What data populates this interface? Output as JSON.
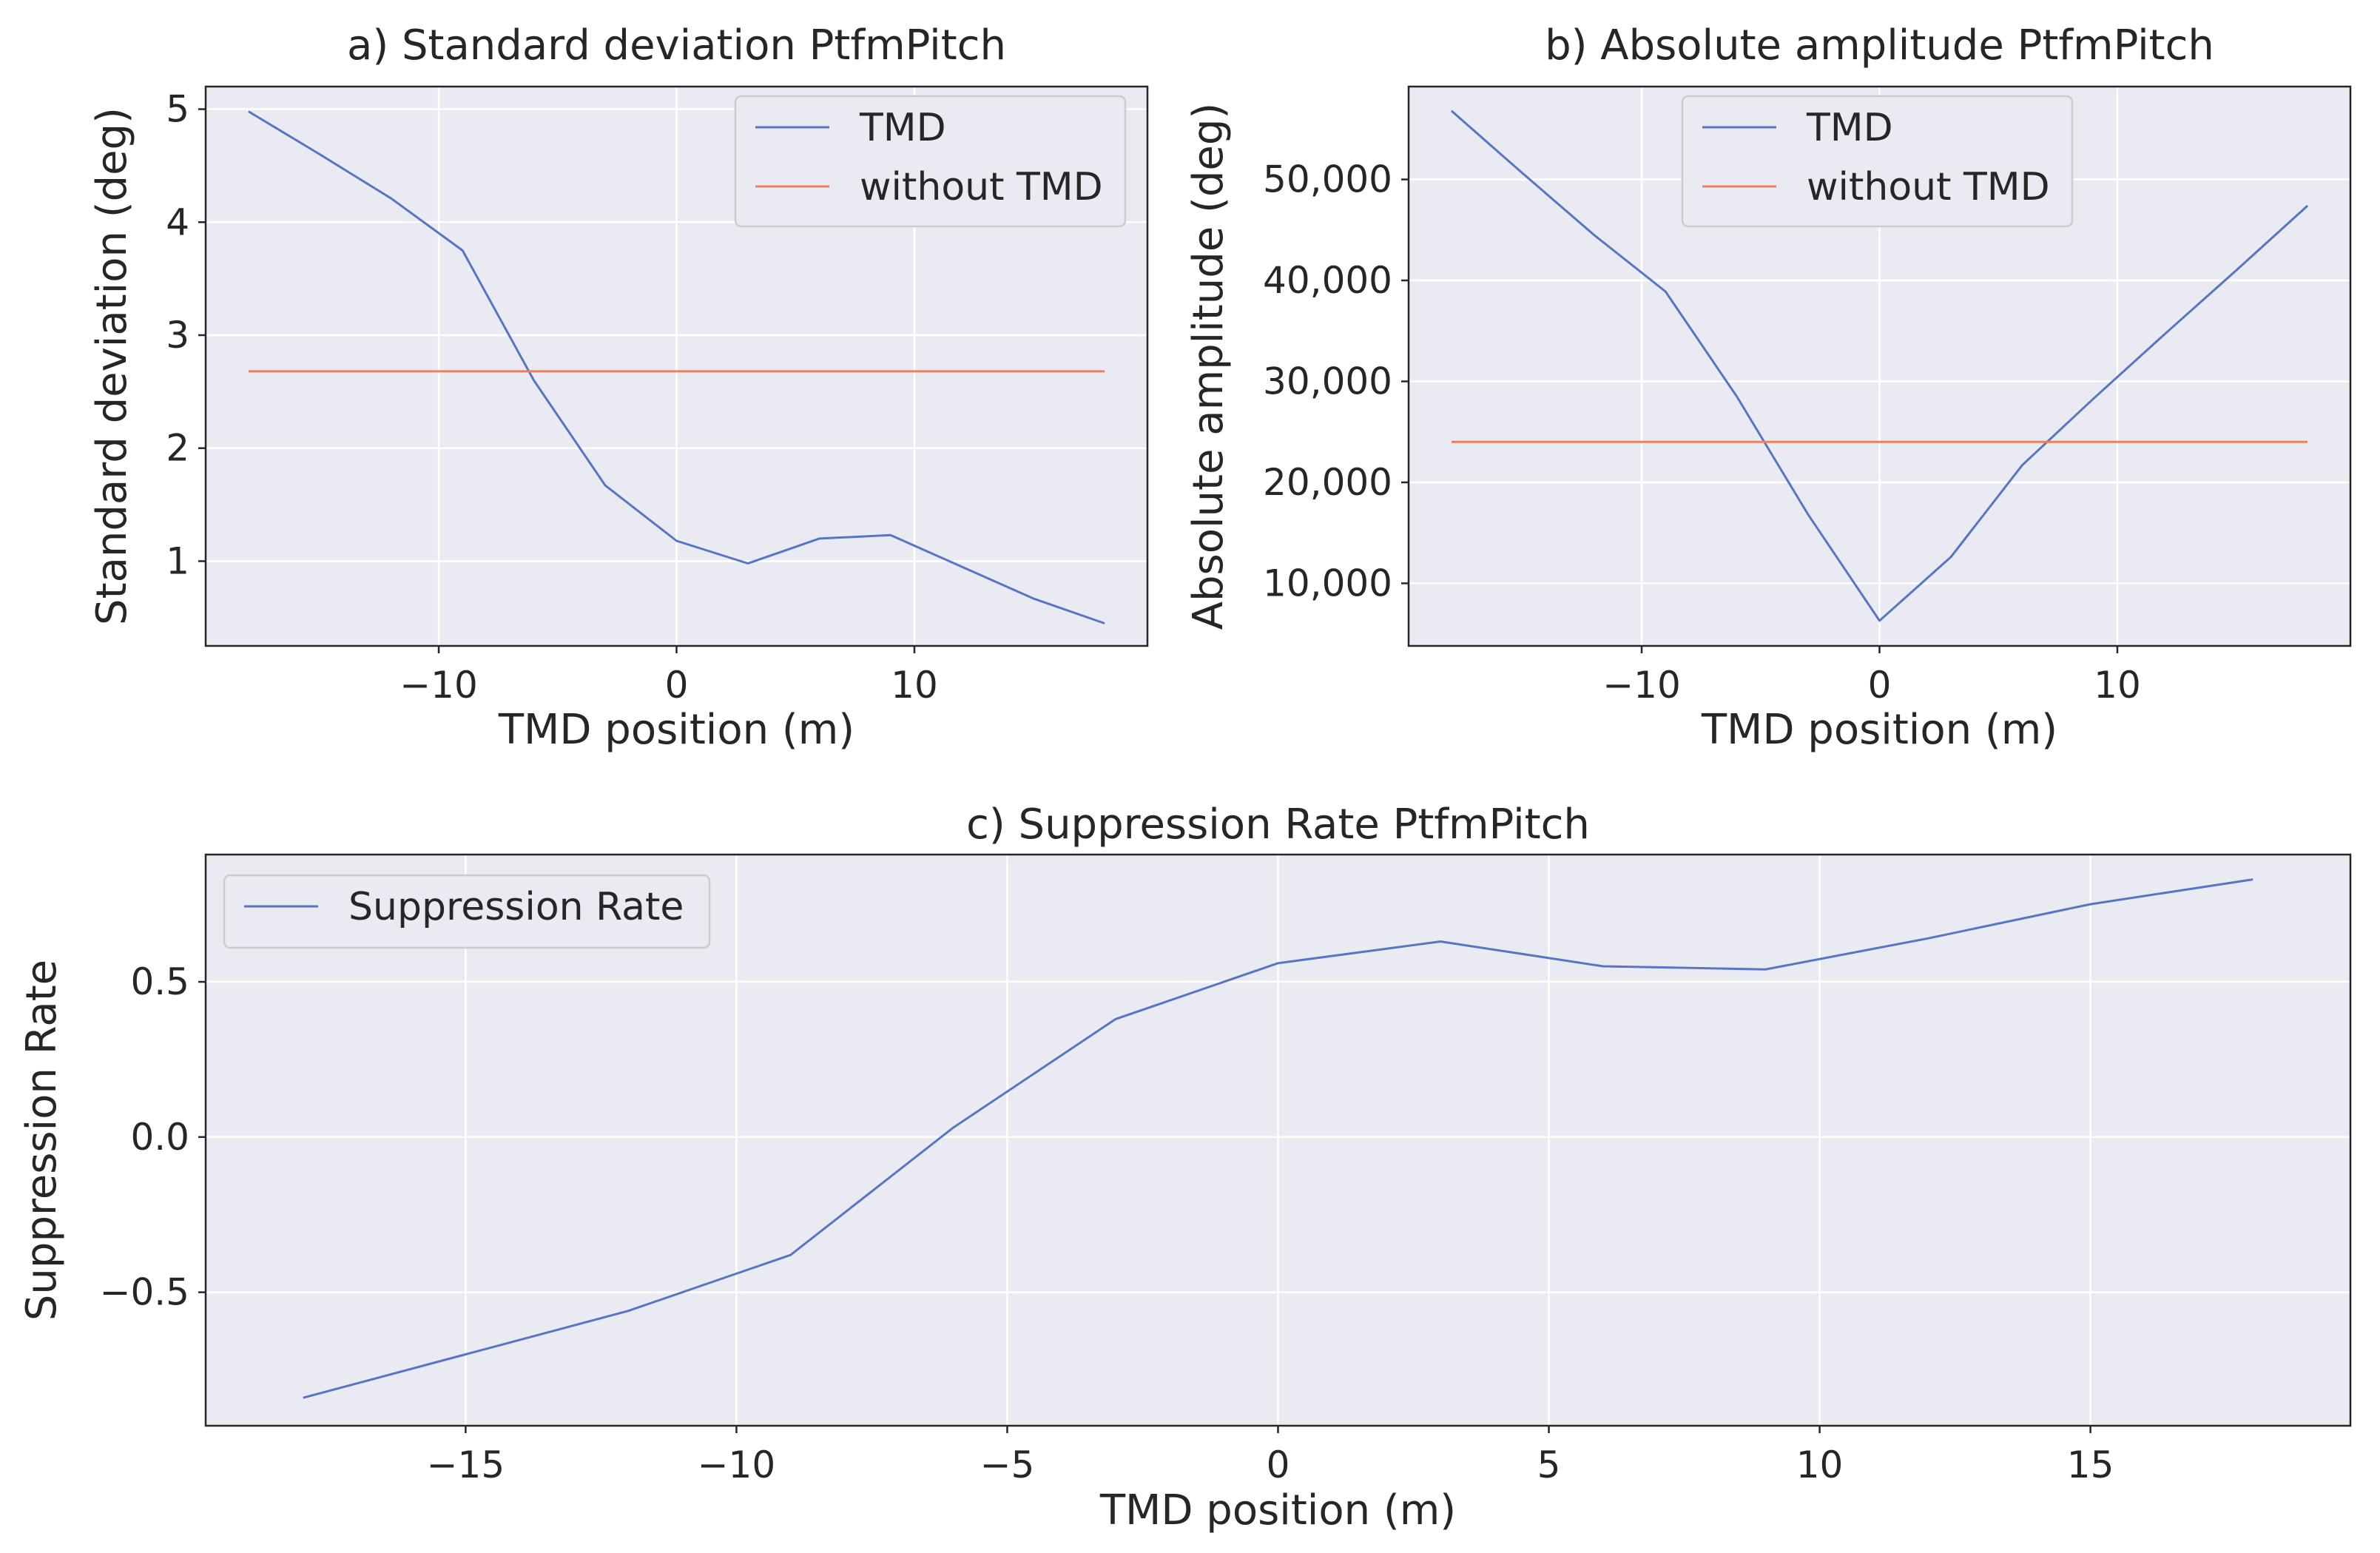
{
  "colors": {
    "tmd": "#5875c4",
    "without_tmd": "#e8815e",
    "suppression": "#5875c4"
  },
  "chart_data": [
    {
      "id": "a",
      "type": "line",
      "title": "a) Standard deviation PtfmPitch",
      "xlabel": "TMD position (m)",
      "ylabel": "Standard deviation (deg)",
      "xlim": [
        -19.8,
        19.8
      ],
      "ylim": [
        0.25,
        5.2
      ],
      "xticks": [
        -10,
        0,
        10
      ],
      "xtick_labels": [
        "−10",
        "0",
        "10"
      ],
      "yticks": [
        1,
        2,
        3,
        4,
        5
      ],
      "ytick_labels": [
        "1",
        "2",
        "3",
        "4",
        "5"
      ],
      "legend": {
        "position": "upper right",
        "entries": [
          "TMD",
          "without TMD"
        ]
      },
      "series": [
        {
          "name": "TMD",
          "color_key": "tmd",
          "x": [
            -18,
            -15,
            -12,
            -9,
            -6,
            -3,
            0,
            3,
            6,
            9,
            12,
            15,
            18
          ],
          "y": [
            4.98,
            4.6,
            4.21,
            3.75,
            2.6,
            1.67,
            1.18,
            0.98,
            1.2,
            1.23,
            0.95,
            0.67,
            0.45
          ]
        },
        {
          "name": "without TMD",
          "color_key": "without_tmd",
          "x": [
            -18,
            18
          ],
          "y": [
            2.68,
            2.68
          ]
        }
      ]
    },
    {
      "id": "b",
      "type": "line",
      "title": "b) Absolute amplitude PtfmPitch",
      "xlabel": "TMD position (m)",
      "ylabel": "Absolute amplitude (deg)",
      "xlim": [
        -19.8,
        19.8
      ],
      "ylim": [
        3800,
        59200
      ],
      "xticks": [
        -10,
        0,
        10
      ],
      "xtick_labels": [
        "−10",
        "0",
        "10"
      ],
      "yticks": [
        10000,
        20000,
        30000,
        40000,
        50000
      ],
      "ytick_labels": [
        "10,000",
        "20,000",
        "30,000",
        "40,000",
        "50,000"
      ],
      "legend": {
        "position": "upper center",
        "entries": [
          "TMD",
          "without TMD"
        ]
      },
      "series": [
        {
          "name": "TMD",
          "color_key": "tmd",
          "x": [
            -18,
            -15,
            -12,
            -9,
            -6,
            -3,
            0,
            3,
            6,
            9,
            12,
            15,
            18
          ],
          "y": [
            56800,
            50600,
            44500,
            38900,
            28500,
            16800,
            6300,
            12600,
            21700,
            28300,
            34700,
            41000,
            47400
          ]
        },
        {
          "name": "without TMD",
          "color_key": "without_tmd",
          "x": [
            -18,
            18
          ],
          "y": [
            24000,
            24000
          ]
        }
      ]
    },
    {
      "id": "c",
      "type": "line",
      "title": "c) Suppression Rate PtfmPitch",
      "xlabel": "TMD position (m)",
      "ylabel": "Suppression Rate",
      "xlim": [
        -19.8,
        19.8
      ],
      "ylim": [
        -0.93,
        0.91
      ],
      "xticks": [
        -15,
        -10,
        -5,
        0,
        5,
        10,
        15
      ],
      "xtick_labels": [
        "−15",
        "−10",
        "−5",
        "0",
        "5",
        "10",
        "15"
      ],
      "yticks": [
        -0.5,
        0,
        0.5
      ],
      "ytick_labels": [
        "−0.5",
        "0.0",
        "0.5"
      ],
      "legend": {
        "position": "upper left",
        "entries": [
          "Suppression Rate"
        ]
      },
      "series": [
        {
          "name": "Suppression Rate",
          "color_key": "suppression",
          "x": [
            -18,
            -15,
            -12,
            -9,
            -6,
            -3,
            0,
            3,
            6,
            9,
            12,
            15,
            18
          ],
          "y": [
            -0.84,
            -0.7,
            -0.56,
            -0.38,
            0.03,
            0.38,
            0.56,
            0.63,
            0.55,
            0.54,
            0.64,
            0.75,
            0.83
          ]
        }
      ]
    }
  ]
}
